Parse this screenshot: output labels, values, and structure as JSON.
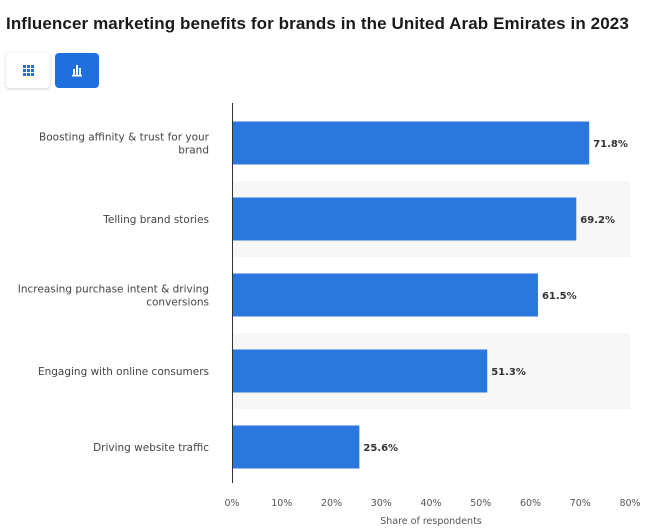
{
  "title": "Influencer marketing benefits for brands in the United Arab Emirates in 2023",
  "view_toggle": {
    "table_icon": "grid-icon",
    "chart_icon": "bar-chart-icon",
    "active": "chart"
  },
  "colors": {
    "bar": "#2a78de",
    "active_toggle": "#1f6fde",
    "band": "#f7f7f7"
  },
  "chart_data": {
    "type": "bar",
    "orientation": "horizontal",
    "categories": [
      "Boosting affinity & trust for your brand",
      "Telling brand stories",
      "Increasing purchase intent & driving conversions",
      "Engaging with online consumers",
      "Driving website traffic"
    ],
    "category_lines": [
      [
        "Boosting affinity & trust for your",
        "brand"
      ],
      [
        "Telling brand stories"
      ],
      [
        "Increasing purchase intent & driving",
        "conversions"
      ],
      [
        "Engaging with online consumers"
      ],
      [
        "Driving website traffic"
      ]
    ],
    "values": [
      71.8,
      69.2,
      61.5,
      51.3,
      25.6
    ],
    "value_labels": [
      "71.8%",
      "69.2%",
      "61.5%",
      "51.3%",
      "25.6%"
    ],
    "xlabel": "Share of respondents",
    "xlim": [
      0,
      80
    ],
    "xticks": [
      0,
      10,
      20,
      30,
      40,
      50,
      60,
      70,
      80
    ],
    "xtick_labels": [
      "0%",
      "10%",
      "20%",
      "30%",
      "40%",
      "50%",
      "60%",
      "70%",
      "80%"
    ],
    "grid": false,
    "legend": "none"
  }
}
